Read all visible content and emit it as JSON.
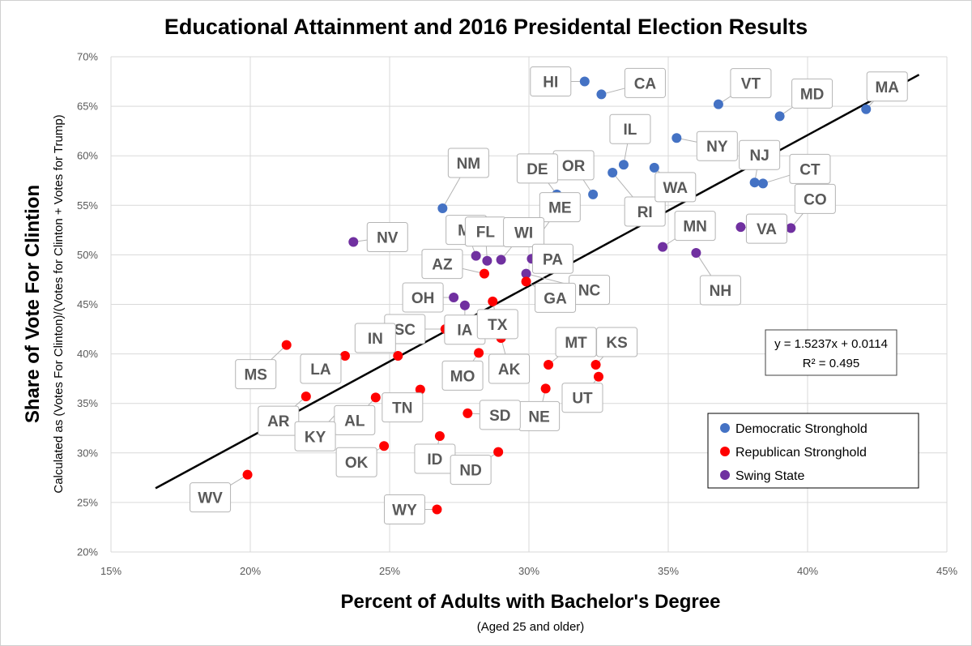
{
  "chart_data": {
    "type": "scatter",
    "title": "Educational Attainment and 2016 Presidental Election Results",
    "xlabel": "Percent of Adults with Bachelor's Degree",
    "xlabel_sub": "(Aged 25 and older)",
    "ylabel": "Share of Vote For Clintion",
    "ylabel_sub": "Calculated as (Votes For Clinton)/(Votes for Clinton + Votes for Trump)",
    "xlim": [
      0.15,
      0.45
    ],
    "ylim": [
      0.2,
      0.7
    ],
    "x_ticks": [
      0.15,
      0.2,
      0.25,
      0.3,
      0.35,
      0.4,
      0.45
    ],
    "x_tick_labels": [
      "15%",
      "20%",
      "25%",
      "30%",
      "35%",
      "40%",
      "45%"
    ],
    "y_ticks": [
      0.2,
      0.25,
      0.3,
      0.35,
      0.4,
      0.45,
      0.5,
      0.55,
      0.6,
      0.65,
      0.7
    ],
    "y_tick_labels": [
      "20%",
      "25%",
      "30%",
      "35%",
      "40%",
      "45%",
      "50%",
      "55%",
      "60%",
      "65%",
      "70%"
    ],
    "grid": true,
    "colors": {
      "democratic": "#4472c4",
      "republican": "#ff0000",
      "swing": "#7030a0",
      "maine": "#0070c0"
    },
    "legend": {
      "placement": "bottom-right",
      "items": [
        {
          "label": "Democratic Stronghold",
          "color": "#4472c4"
        },
        {
          "label": "Republican Stronghold",
          "color": "#ff0000"
        },
        {
          "label": "Swing State",
          "color": "#7030a0"
        }
      ]
    },
    "trendline": {
      "slope": 1.5237,
      "intercept": 0.0114,
      "x_range": [
        0.166,
        0.44
      ],
      "equation": "y = 1.5237x + 0.0114",
      "r_squared": "R² = 0.495"
    },
    "points": [
      {
        "state": "HI",
        "x": 0.32,
        "y": 0.675,
        "group": "democratic"
      },
      {
        "state": "CA",
        "x": 0.326,
        "y": 0.662,
        "group": "democratic"
      },
      {
        "state": "VT",
        "x": 0.368,
        "y": 0.652,
        "group": "democratic"
      },
      {
        "state": "MD",
        "x": 0.39,
        "y": 0.64,
        "group": "democratic"
      },
      {
        "state": "MA",
        "x": 0.421,
        "y": 0.647,
        "group": "democratic"
      },
      {
        "state": "NY",
        "x": 0.353,
        "y": 0.618,
        "group": "democratic"
      },
      {
        "state": "IL",
        "x": 0.334,
        "y": 0.591,
        "group": "democratic"
      },
      {
        "state": "RI",
        "x": 0.33,
        "y": 0.583,
        "group": "democratic"
      },
      {
        "state": "WA",
        "x": 0.345,
        "y": 0.588,
        "group": "democratic"
      },
      {
        "state": "OR",
        "x": 0.323,
        "y": 0.561,
        "group": "democratic"
      },
      {
        "state": "DE",
        "x": 0.31,
        "y": 0.561,
        "group": "democratic"
      },
      {
        "state": "NJ",
        "x": 0.381,
        "y": 0.573,
        "group": "democratic"
      },
      {
        "state": "CT",
        "x": 0.384,
        "y": 0.572,
        "group": "democratic"
      },
      {
        "state": "NM",
        "x": 0.269,
        "y": 0.547,
        "group": "democratic"
      },
      {
        "state": "ME",
        "x": 0.303,
        "y": 0.517,
        "group": "maine"
      },
      {
        "state": "CO",
        "x": 0.394,
        "y": 0.527,
        "group": "swing"
      },
      {
        "state": "VA",
        "x": 0.376,
        "y": 0.528,
        "group": "swing"
      },
      {
        "state": "MN",
        "x": 0.348,
        "y": 0.508,
        "group": "swing"
      },
      {
        "state": "NH",
        "x": 0.36,
        "y": 0.502,
        "group": "swing"
      },
      {
        "state": "NV",
        "x": 0.237,
        "y": 0.513,
        "group": "swing"
      },
      {
        "state": "MI",
        "x": 0.281,
        "y": 0.499,
        "group": "swing"
      },
      {
        "state": "FL",
        "x": 0.285,
        "y": 0.494,
        "group": "swing"
      },
      {
        "state": "WI",
        "x": 0.29,
        "y": 0.495,
        "group": "swing"
      },
      {
        "state": "PA",
        "x": 0.301,
        "y": 0.496,
        "group": "swing"
      },
      {
        "state": "NC",
        "x": 0.299,
        "y": 0.481,
        "group": "swing"
      },
      {
        "state": "OH",
        "x": 0.273,
        "y": 0.457,
        "group": "swing"
      },
      {
        "state": "IA",
        "x": 0.277,
        "y": 0.449,
        "group": "swing"
      },
      {
        "state": "AZ",
        "x": 0.284,
        "y": 0.481,
        "group": "republican"
      },
      {
        "state": "GA",
        "x": 0.299,
        "y": 0.473,
        "group": "republican"
      },
      {
        "state": "TX",
        "x": 0.287,
        "y": 0.453,
        "group": "republican"
      },
      {
        "state": "SC",
        "x": 0.27,
        "y": 0.425,
        "group": "republican"
      },
      {
        "state": "AK",
        "x": 0.29,
        "y": 0.416,
        "group": "republican"
      },
      {
        "state": "MO",
        "x": 0.282,
        "y": 0.401,
        "group": "republican"
      },
      {
        "state": "IN",
        "x": 0.253,
        "y": 0.398,
        "group": "republican"
      },
      {
        "state": "LA",
        "x": 0.234,
        "y": 0.398,
        "group": "republican"
      },
      {
        "state": "MS",
        "x": 0.213,
        "y": 0.409,
        "group": "republican"
      },
      {
        "state": "MT",
        "x": 0.307,
        "y": 0.389,
        "group": "republican"
      },
      {
        "state": "KS",
        "x": 0.324,
        "y": 0.389,
        "group": "republican"
      },
      {
        "state": "UT",
        "x": 0.325,
        "y": 0.377,
        "group": "republican"
      },
      {
        "state": "NE",
        "x": 0.306,
        "y": 0.365,
        "group": "republican"
      },
      {
        "state": "TN",
        "x": 0.261,
        "y": 0.364,
        "group": "republican"
      },
      {
        "state": "AR",
        "x": 0.22,
        "y": 0.357,
        "group": "republican"
      },
      {
        "state": "AL",
        "x": 0.245,
        "y": 0.356,
        "group": "republican"
      },
      {
        "state": "KY",
        "x": 0.232,
        "y": 0.343,
        "group": "republican"
      },
      {
        "state": "SD",
        "x": 0.278,
        "y": 0.34,
        "group": "republican"
      },
      {
        "state": "ID",
        "x": 0.268,
        "y": 0.317,
        "group": "republican"
      },
      {
        "state": "OK",
        "x": 0.248,
        "y": 0.307,
        "group": "republican"
      },
      {
        "state": "ND",
        "x": 0.289,
        "y": 0.301,
        "group": "republican"
      },
      {
        "state": "WV",
        "x": 0.199,
        "y": 0.278,
        "group": "republican"
      },
      {
        "state": "WY",
        "x": 0.267,
        "y": 0.243,
        "group": "republican"
      }
    ]
  }
}
